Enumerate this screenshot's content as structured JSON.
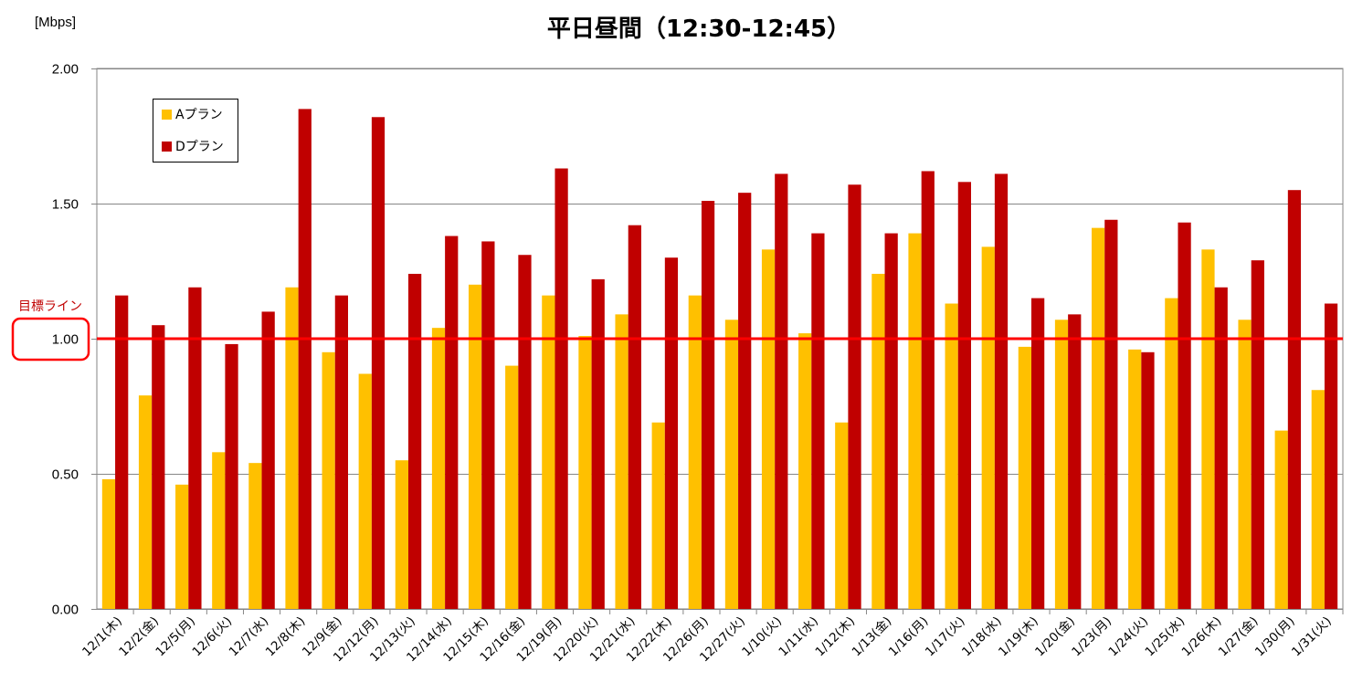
{
  "chart_data": {
    "type": "bar",
    "title": "平日昼間（12:30-12:45）",
    "ylabel": "[Mbps]",
    "xlabel": "",
    "ylim": [
      0,
      2
    ],
    "yticks": [
      "0.00",
      "0.50",
      "1.00",
      "1.50",
      "2.00"
    ],
    "yticks_values": [
      0,
      0.5,
      1,
      1.5,
      2
    ],
    "grid": true,
    "legend_position": "top-left",
    "categories": [
      "12/1(木)",
      "12/2(金)",
      "12/5(月)",
      "12/6(火)",
      "12/7(水)",
      "12/8(木)",
      "12/9(金)",
      "12/12(月)",
      "12/13(火)",
      "12/14(水)",
      "12/15(木)",
      "12/16(金)",
      "12/19(月)",
      "12/20(火)",
      "12/21(水)",
      "12/22(木)",
      "12/26(月)",
      "12/27(火)",
      "1/10(火)",
      "1/11(水)",
      "1/12(木)",
      "1/13(金)",
      "1/16(月)",
      "1/17(火)",
      "1/18(水)",
      "1/19(木)",
      "1/20(金)",
      "1/23(月)",
      "1/24(火)",
      "1/25(水)",
      "1/26(木)",
      "1/27(金)",
      "1/30(月)",
      "1/31(火)"
    ],
    "series": [
      {
        "name": "Aプラン",
        "color": "#ffc000",
        "values": [
          0.48,
          0.79,
          0.46,
          0.58,
          0.54,
          1.19,
          0.95,
          0.87,
          0.55,
          1.04,
          1.2,
          0.9,
          1.16,
          1.01,
          1.09,
          0.69,
          1.16,
          1.07,
          1.33,
          1.02,
          0.69,
          1.24,
          1.39,
          1.13,
          1.34,
          0.97,
          1.07,
          1.41,
          0.96,
          1.15,
          1.33,
          1.07,
          0.66,
          0.81
        ]
      },
      {
        "name": "Dプラン",
        "color": "#c00000",
        "values": [
          1.16,
          1.05,
          1.19,
          0.98,
          1.1,
          1.85,
          1.16,
          1.82,
          1.24,
          1.38,
          1.36,
          1.31,
          1.63,
          1.22,
          1.42,
          1.3,
          1.51,
          1.54,
          1.61,
          1.39,
          1.57,
          1.39,
          1.62,
          1.58,
          1.61,
          1.15,
          1.09,
          1.44,
          0.95,
          1.43,
          1.19,
          1.29,
          1.55,
          1.13
        ]
      }
    ],
    "target_line": {
      "label": "目標ライン",
      "value": 1.0,
      "color": "#ff0000"
    }
  }
}
